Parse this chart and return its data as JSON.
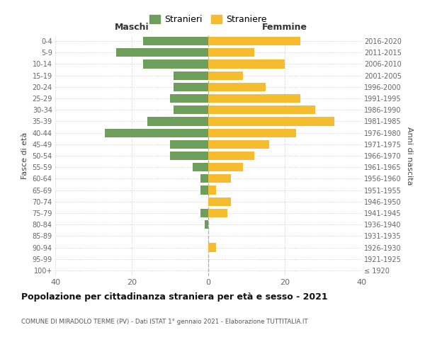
{
  "age_groups": [
    "100+",
    "95-99",
    "90-94",
    "85-89",
    "80-84",
    "75-79",
    "70-74",
    "65-69",
    "60-64",
    "55-59",
    "50-54",
    "45-49",
    "40-44",
    "35-39",
    "30-34",
    "25-29",
    "20-24",
    "15-19",
    "10-14",
    "5-9",
    "0-4"
  ],
  "birth_years": [
    "≤ 1920",
    "1921-1925",
    "1926-1930",
    "1931-1935",
    "1936-1940",
    "1941-1945",
    "1946-1950",
    "1951-1955",
    "1956-1960",
    "1961-1965",
    "1966-1970",
    "1971-1975",
    "1976-1980",
    "1981-1985",
    "1986-1990",
    "1991-1995",
    "1996-2000",
    "2001-2005",
    "2006-2010",
    "2011-2015",
    "2016-2020"
  ],
  "maschi": [
    0,
    0,
    0,
    0,
    1,
    2,
    0,
    2,
    2,
    4,
    10,
    10,
    27,
    16,
    9,
    10,
    9,
    9,
    17,
    24,
    17
  ],
  "femmine": [
    0,
    0,
    2,
    0,
    0,
    5,
    6,
    2,
    6,
    9,
    12,
    16,
    23,
    33,
    28,
    24,
    15,
    9,
    20,
    12,
    24
  ],
  "male_color": "#6d9e5a",
  "female_color": "#f5bc2f",
  "background_color": "#ffffff",
  "grid_color": "#cccccc",
  "title": "Popolazione per cittadinanza straniera per età e sesso - 2021",
  "subtitle": "COMUNE DI MIRADOLO TERME (PV) - Dati ISTAT 1° gennaio 2021 - Elaborazione TUTTITALIA.IT",
  "xlabel_left": "Maschi",
  "xlabel_right": "Femmine",
  "ylabel_left": "Fasce di età",
  "ylabel_right": "Anni di nascita",
  "xlim": 40,
  "legend_maschi": "Stranieri",
  "legend_femmine": "Straniere"
}
